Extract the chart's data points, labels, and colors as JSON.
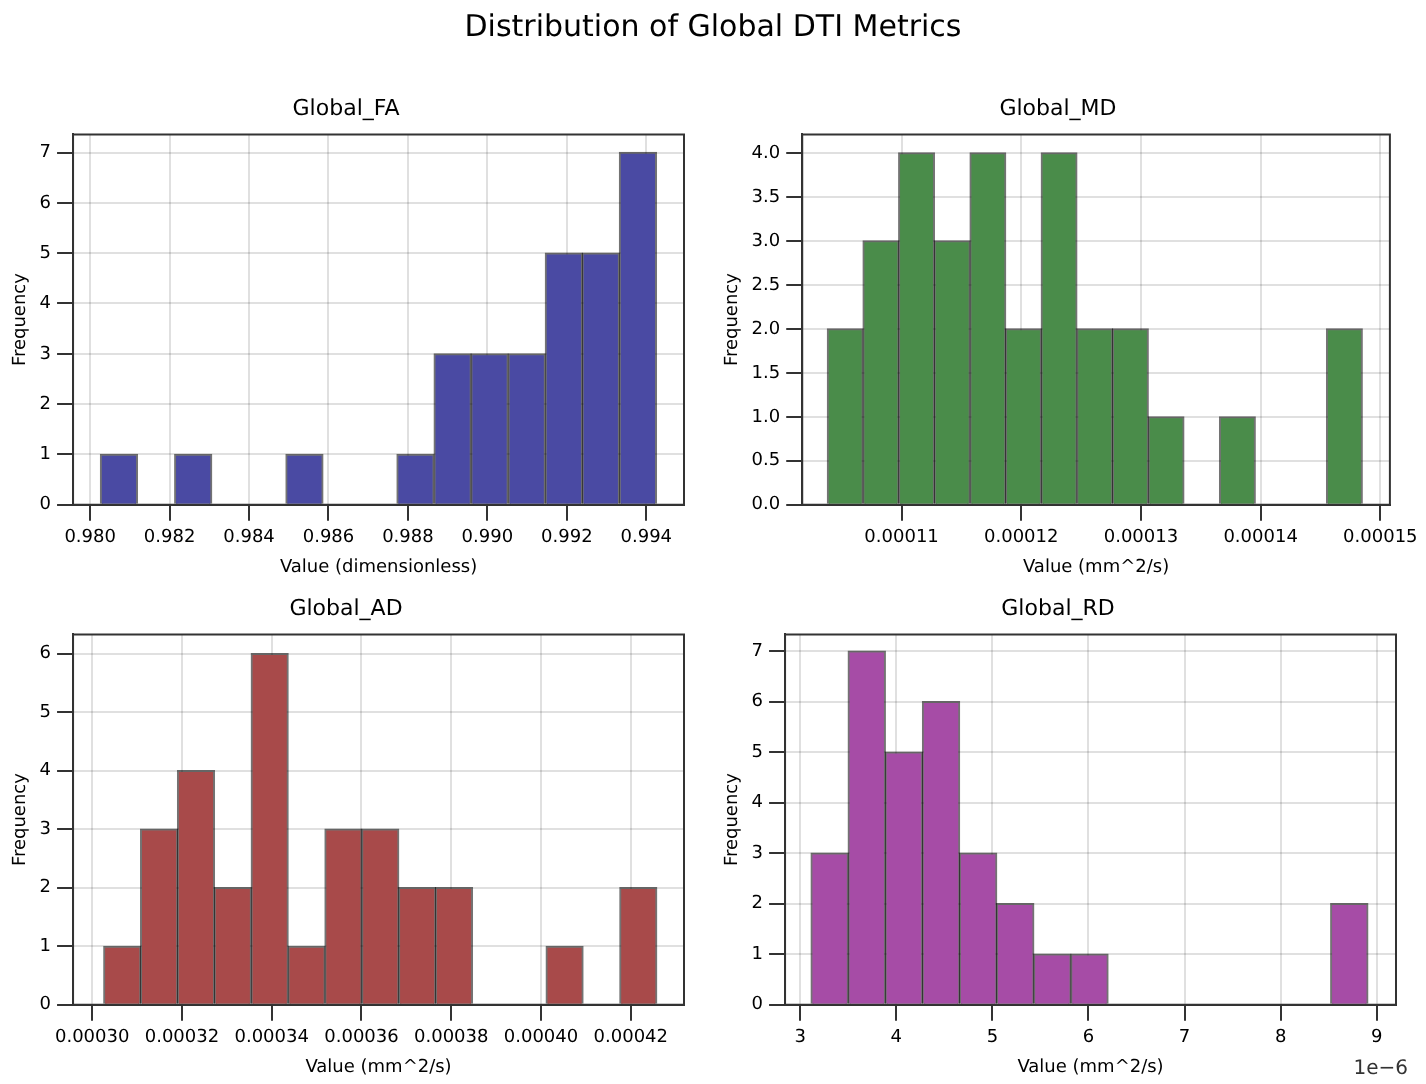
{
  "chart_data": [
    {
      "type": "histogram",
      "title": "Global_FA",
      "xlabel": "Value (dimensionless)",
      "ylabel": "Frequency",
      "annotations": [
        "Distribution of Global DTI Metrics"
      ],
      "bins": [
        0.98026,
        0.98119,
        0.98213,
        0.98306,
        0.98399,
        0.98493,
        0.98586,
        0.98679,
        0.98772,
        0.98866,
        0.98959,
        0.99052,
        0.99146,
        0.99239,
        0.99332,
        0.99426
      ],
      "series": [
        {
          "color": "#4a4aa3",
          "values": [
            1,
            0,
            1,
            0,
            0,
            1,
            0,
            0,
            1,
            3,
            3,
            3,
            5,
            5,
            7
          ]
        }
      ],
      "xlim": [
        0.97957,
        0.99495
      ],
      "xticks": [
        {
          "value": 0.98,
          "label": "0.980"
        },
        {
          "value": 0.982,
          "label": "0.982"
        },
        {
          "value": 0.984,
          "label": "0.984"
        },
        {
          "value": 0.986,
          "label": "0.986"
        },
        {
          "value": 0.988,
          "label": "0.988"
        },
        {
          "value": 0.99,
          "label": "0.990"
        },
        {
          "value": 0.992,
          "label": "0.992"
        },
        {
          "value": 0.994,
          "label": "0.994"
        }
      ],
      "ylim": [
        0,
        7.36
      ],
      "yticks": [
        0,
        1,
        2,
        3,
        4,
        5,
        6,
        7
      ],
      "grid": true,
      "legend": false
    },
    {
      "type": "histogram",
      "title": "Global_MD",
      "xlabel": "Value (mm^2/s)",
      "ylabel": "Frequency",
      "bins": [
        0.0001038,
        0.00010678,
        0.00010976,
        0.00011274,
        0.00011572,
        0.0001187,
        0.00012167,
        0.00012465,
        0.00012763,
        0.00013061,
        0.00013359,
        0.00013657,
        0.00013955,
        0.00014253,
        0.00014551,
        0.00014849
      ],
      "series": [
        {
          "color": "#4a8c4a",
          "values": [
            2,
            3,
            4,
            3,
            4,
            2,
            4,
            2,
            2,
            1,
            0,
            1,
            0,
            0,
            2
          ]
        }
      ],
      "xlim": [
        0.0001017,
        0.0001508
      ],
      "xticks": [
        {
          "value": 0.00011,
          "label": "0.00011"
        },
        {
          "value": 0.00012,
          "label": "0.00012"
        },
        {
          "value": 0.00013,
          "label": "0.00013"
        },
        {
          "value": 0.00014,
          "label": "0.00014"
        },
        {
          "value": 0.00015,
          "label": "0.00015"
        }
      ],
      "ylim": [
        0,
        4.21
      ],
      "yticks": [
        {
          "value": 0,
          "label": "0.0"
        },
        {
          "value": 0.5,
          "label": "0.5"
        },
        {
          "value": 1,
          "label": "1.0"
        },
        {
          "value": 1.5,
          "label": "1.5"
        },
        {
          "value": 2,
          "label": "2.0"
        },
        {
          "value": 2.5,
          "label": "2.5"
        },
        {
          "value": 3,
          "label": "3.0"
        },
        {
          "value": 3.5,
          "label": "3.5"
        },
        {
          "value": 4,
          "label": "4.0"
        }
      ],
      "grid": true,
      "legend": false
    },
    {
      "type": "histogram",
      "title": "Global_AD",
      "xlabel": "Value (mm^2/s)",
      "ylabel": "Frequency",
      "bins": [
        0.00030259,
        0.0003108,
        0.00031902,
        0.00032723,
        0.00033544,
        0.00034366,
        0.00035187,
        0.00036008,
        0.0003683,
        0.00037651,
        0.00038472,
        0.00039293,
        0.00040115,
        0.00040936,
        0.00041757,
        0.00042578
      ],
      "series": [
        {
          "color": "#a84a4a",
          "values": [
            1,
            3,
            4,
            2,
            6,
            1,
            3,
            3,
            2,
            2,
            0,
            0,
            1,
            0,
            2
          ]
        }
      ],
      "xlim": [
        0.00029574,
        0.00043186
      ],
      "xticks": [
        {
          "value": 0.0003,
          "label": "0.00030"
        },
        {
          "value": 0.00032,
          "label": "0.00032"
        },
        {
          "value": 0.00034,
          "label": "0.00034"
        },
        {
          "value": 0.00036,
          "label": "0.00036"
        },
        {
          "value": 0.00038,
          "label": "0.00038"
        },
        {
          "value": 0.0004,
          "label": "0.00040"
        },
        {
          "value": 0.00042,
          "label": "0.00042"
        }
      ],
      "ylim": [
        0,
        6.33
      ],
      "yticks": [
        0,
        1,
        2,
        3,
        4,
        5,
        6
      ],
      "grid": true,
      "legend": false
    },
    {
      "type": "histogram",
      "title": "Global_RD",
      "xlabel": "Value (mm^2/s)",
      "ylabel": "Frequency",
      "annotations": [
        "1e−6"
      ],
      "bins": [
        3.114,
        3.5,
        3.886,
        4.273,
        4.659,
        5.045,
        5.431,
        5.817,
        6.204,
        6.59,
        6.976,
        7.362,
        7.748,
        8.135,
        8.521,
        8.907
      ],
      "series": [
        {
          "color": "#a64ca6",
          "values": [
            3,
            7,
            5,
            6,
            3,
            2,
            1,
            1,
            0,
            0,
            0,
            0,
            0,
            0,
            2
          ]
        }
      ],
      "xlim": [
        2.843,
        9.2
      ],
      "xticks": [
        3,
        4,
        5,
        6,
        7,
        8,
        9
      ],
      "ylim": [
        0,
        7.33
      ],
      "yticks": [
        0,
        1,
        2,
        3,
        4,
        5,
        6,
        7
      ],
      "grid": true,
      "legend": false
    }
  ]
}
